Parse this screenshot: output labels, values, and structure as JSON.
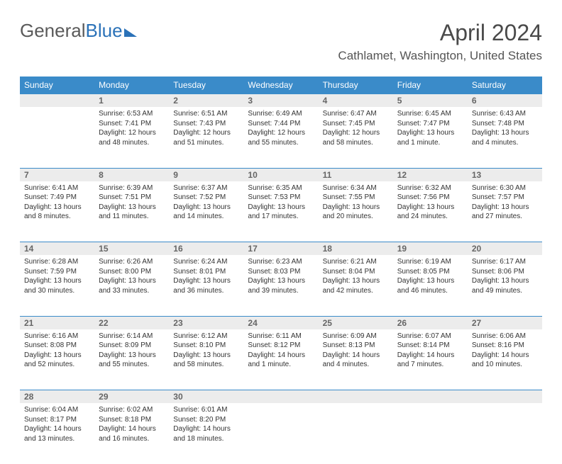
{
  "brand": {
    "part1": "General",
    "part2": "Blue"
  },
  "title": "April 2024",
  "location": "Cathlamet, Washington, United States",
  "header_bg": "#3a8bc9",
  "daynum_bg": "#ececec",
  "weekdays": [
    "Sunday",
    "Monday",
    "Tuesday",
    "Wednesday",
    "Thursday",
    "Friday",
    "Saturday"
  ],
  "weeks": [
    {
      "nums": [
        "",
        "1",
        "2",
        "3",
        "4",
        "5",
        "6"
      ],
      "cells": [
        {
          "sunrise": "",
          "sunset": "",
          "daylight": ""
        },
        {
          "sunrise": "Sunrise: 6:53 AM",
          "sunset": "Sunset: 7:41 PM",
          "daylight": "Daylight: 12 hours and 48 minutes."
        },
        {
          "sunrise": "Sunrise: 6:51 AM",
          "sunset": "Sunset: 7:43 PM",
          "daylight": "Daylight: 12 hours and 51 minutes."
        },
        {
          "sunrise": "Sunrise: 6:49 AM",
          "sunset": "Sunset: 7:44 PM",
          "daylight": "Daylight: 12 hours and 55 minutes."
        },
        {
          "sunrise": "Sunrise: 6:47 AM",
          "sunset": "Sunset: 7:45 PM",
          "daylight": "Daylight: 12 hours and 58 minutes."
        },
        {
          "sunrise": "Sunrise: 6:45 AM",
          "sunset": "Sunset: 7:47 PM",
          "daylight": "Daylight: 13 hours and 1 minute."
        },
        {
          "sunrise": "Sunrise: 6:43 AM",
          "sunset": "Sunset: 7:48 PM",
          "daylight": "Daylight: 13 hours and 4 minutes."
        }
      ]
    },
    {
      "nums": [
        "7",
        "8",
        "9",
        "10",
        "11",
        "12",
        "13"
      ],
      "cells": [
        {
          "sunrise": "Sunrise: 6:41 AM",
          "sunset": "Sunset: 7:49 PM",
          "daylight": "Daylight: 13 hours and 8 minutes."
        },
        {
          "sunrise": "Sunrise: 6:39 AM",
          "sunset": "Sunset: 7:51 PM",
          "daylight": "Daylight: 13 hours and 11 minutes."
        },
        {
          "sunrise": "Sunrise: 6:37 AM",
          "sunset": "Sunset: 7:52 PM",
          "daylight": "Daylight: 13 hours and 14 minutes."
        },
        {
          "sunrise": "Sunrise: 6:35 AM",
          "sunset": "Sunset: 7:53 PM",
          "daylight": "Daylight: 13 hours and 17 minutes."
        },
        {
          "sunrise": "Sunrise: 6:34 AM",
          "sunset": "Sunset: 7:55 PM",
          "daylight": "Daylight: 13 hours and 20 minutes."
        },
        {
          "sunrise": "Sunrise: 6:32 AM",
          "sunset": "Sunset: 7:56 PM",
          "daylight": "Daylight: 13 hours and 24 minutes."
        },
        {
          "sunrise": "Sunrise: 6:30 AM",
          "sunset": "Sunset: 7:57 PM",
          "daylight": "Daylight: 13 hours and 27 minutes."
        }
      ]
    },
    {
      "nums": [
        "14",
        "15",
        "16",
        "17",
        "18",
        "19",
        "20"
      ],
      "cells": [
        {
          "sunrise": "Sunrise: 6:28 AM",
          "sunset": "Sunset: 7:59 PM",
          "daylight": "Daylight: 13 hours and 30 minutes."
        },
        {
          "sunrise": "Sunrise: 6:26 AM",
          "sunset": "Sunset: 8:00 PM",
          "daylight": "Daylight: 13 hours and 33 minutes."
        },
        {
          "sunrise": "Sunrise: 6:24 AM",
          "sunset": "Sunset: 8:01 PM",
          "daylight": "Daylight: 13 hours and 36 minutes."
        },
        {
          "sunrise": "Sunrise: 6:23 AM",
          "sunset": "Sunset: 8:03 PM",
          "daylight": "Daylight: 13 hours and 39 minutes."
        },
        {
          "sunrise": "Sunrise: 6:21 AM",
          "sunset": "Sunset: 8:04 PM",
          "daylight": "Daylight: 13 hours and 42 minutes."
        },
        {
          "sunrise": "Sunrise: 6:19 AM",
          "sunset": "Sunset: 8:05 PM",
          "daylight": "Daylight: 13 hours and 46 minutes."
        },
        {
          "sunrise": "Sunrise: 6:17 AM",
          "sunset": "Sunset: 8:06 PM",
          "daylight": "Daylight: 13 hours and 49 minutes."
        }
      ]
    },
    {
      "nums": [
        "21",
        "22",
        "23",
        "24",
        "25",
        "26",
        "27"
      ],
      "cells": [
        {
          "sunrise": "Sunrise: 6:16 AM",
          "sunset": "Sunset: 8:08 PM",
          "daylight": "Daylight: 13 hours and 52 minutes."
        },
        {
          "sunrise": "Sunrise: 6:14 AM",
          "sunset": "Sunset: 8:09 PM",
          "daylight": "Daylight: 13 hours and 55 minutes."
        },
        {
          "sunrise": "Sunrise: 6:12 AM",
          "sunset": "Sunset: 8:10 PM",
          "daylight": "Daylight: 13 hours and 58 minutes."
        },
        {
          "sunrise": "Sunrise: 6:11 AM",
          "sunset": "Sunset: 8:12 PM",
          "daylight": "Daylight: 14 hours and 1 minute."
        },
        {
          "sunrise": "Sunrise: 6:09 AM",
          "sunset": "Sunset: 8:13 PM",
          "daylight": "Daylight: 14 hours and 4 minutes."
        },
        {
          "sunrise": "Sunrise: 6:07 AM",
          "sunset": "Sunset: 8:14 PM",
          "daylight": "Daylight: 14 hours and 7 minutes."
        },
        {
          "sunrise": "Sunrise: 6:06 AM",
          "sunset": "Sunset: 8:16 PM",
          "daylight": "Daylight: 14 hours and 10 minutes."
        }
      ]
    },
    {
      "nums": [
        "28",
        "29",
        "30",
        "",
        "",
        "",
        ""
      ],
      "cells": [
        {
          "sunrise": "Sunrise: 6:04 AM",
          "sunset": "Sunset: 8:17 PM",
          "daylight": "Daylight: 14 hours and 13 minutes."
        },
        {
          "sunrise": "Sunrise: 6:02 AM",
          "sunset": "Sunset: 8:18 PM",
          "daylight": "Daylight: 14 hours and 16 minutes."
        },
        {
          "sunrise": "Sunrise: 6:01 AM",
          "sunset": "Sunset: 8:20 PM",
          "daylight": "Daylight: 14 hours and 18 minutes."
        },
        {
          "sunrise": "",
          "sunset": "",
          "daylight": ""
        },
        {
          "sunrise": "",
          "sunset": "",
          "daylight": ""
        },
        {
          "sunrise": "",
          "sunset": "",
          "daylight": ""
        },
        {
          "sunrise": "",
          "sunset": "",
          "daylight": ""
        }
      ]
    }
  ]
}
